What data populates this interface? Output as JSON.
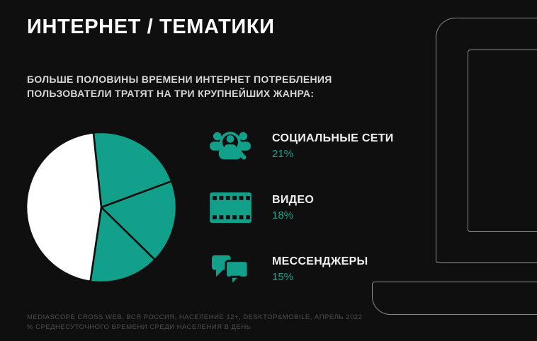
{
  "page": {
    "title": "ИНТЕРНЕТ / ТЕМАТИКИ",
    "subtitle": "БОЛЬШЕ ПОЛОВИНЫ ВРЕМЕНИ ИНТЕРНЕТ ПОТРЕБЛЕНИЯ\nПОЛЬЗОВАТЕЛИ ТРАТЯТ НА ТРИ КРУПНЕЙШИХ ЖАНРА:",
    "footer": "MEDIASCOPE CROSS WEB, ВСЯ РОССИЯ, НАСЕЛЕНИЕ 12+, DESKTOP&MOBILE, АПРЕЛЬ 2022\n% СРЕДНЕСУТОЧНОГО ВРЕМЕНИ СРЕДИ НАСЕЛЕНИЯ В ДЕНЬ"
  },
  "colors": {
    "background": "#0F0F0F",
    "accent": "#12A08B",
    "white_slice": "#FFFFFF",
    "laptop_outline": "#8D8D8D",
    "footer_text": "#4E4E4E"
  },
  "legend": {
    "items": [
      {
        "icon": "social-network-search-icon",
        "label": "СОЦИАЛЬНЫЕ СЕТИ",
        "value": "21%"
      },
      {
        "icon": "film-strip-icon",
        "label": "ВИДЕО",
        "value": "18%"
      },
      {
        "icon": "chat-bubbles-icon",
        "label": "МЕССЕНДЖЕРЫ",
        "value": "15%"
      }
    ]
  },
  "chart_data": {
    "type": "pie",
    "slices": [
      {
        "label": "СОЦИАЛЬНЫЕ СЕТИ",
        "value": 21,
        "color": "#12A08B"
      },
      {
        "label": "ВИДЕО",
        "value": 18,
        "color": "#12A08B"
      },
      {
        "label": "МЕССЕНДЖЕРЫ",
        "value": 15,
        "color": "#12A08B"
      },
      {
        "label": "",
        "value": 46,
        "color": "#FFFFFF"
      }
    ],
    "start_angle_deg": -6,
    "legend_position": "right"
  }
}
